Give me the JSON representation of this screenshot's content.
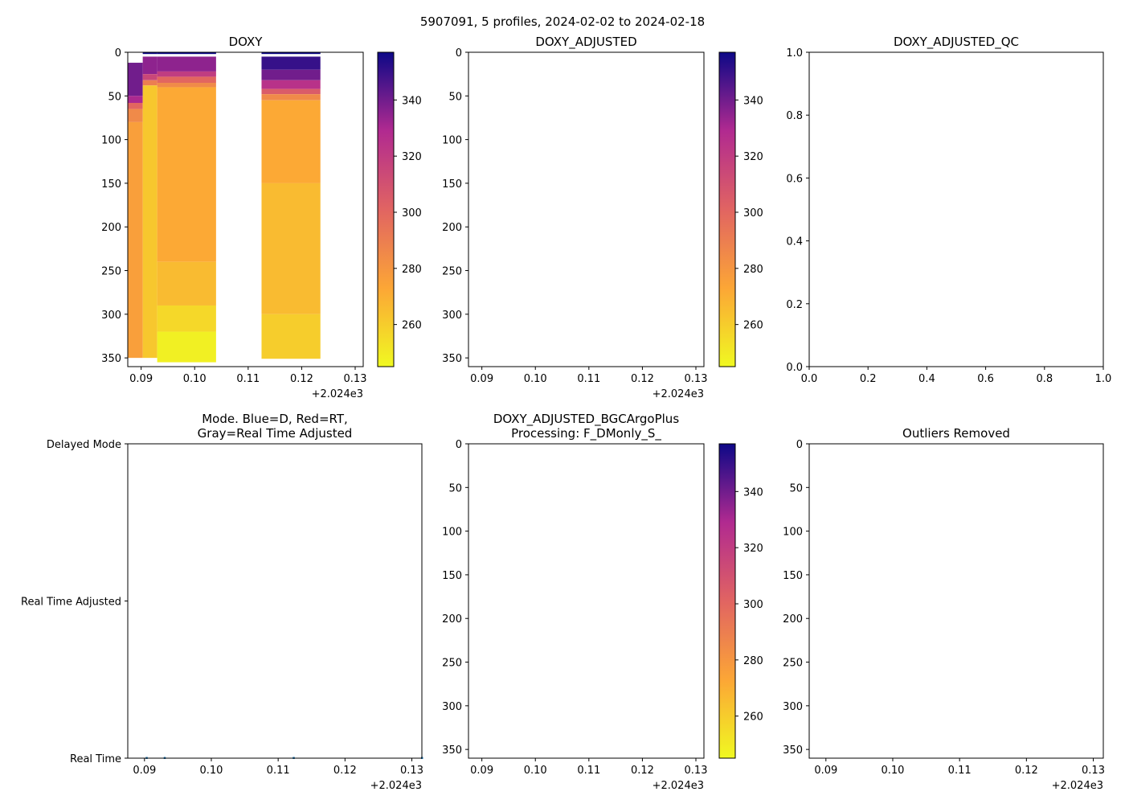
{
  "figure": {
    "suptitle": "5907091, 5 profiles, 2024-02-02 to 2024-02-18"
  },
  "colors": {
    "cmap_low": "#f0f921",
    "cmap_mid_low": "#fca636",
    "cmap_mid": "#e16462",
    "cmap_mid_high": "#b12a90",
    "cmap_high": "#0d0887",
    "mode_dots": "#1f77b4",
    "axes_line": "#000000"
  },
  "chart_data": [
    {
      "type": "heatmap",
      "name": "doxy",
      "title": "DOXY",
      "x_offset_label": "+2.024e3",
      "xlim": [
        0.0875,
        0.1315
      ],
      "ylim": [
        360,
        0
      ],
      "xticks": [
        0.09,
        0.1,
        0.11,
        0.12,
        0.13
      ],
      "xticklabels": [
        "0.09",
        "0.10",
        "0.11",
        "0.12",
        "0.13"
      ],
      "yticks": [
        0,
        50,
        100,
        150,
        200,
        250,
        300,
        350
      ],
      "yticklabels": [
        "0",
        "50",
        "100",
        "150",
        "200",
        "250",
        "300",
        "350"
      ],
      "colorbar": {
        "range": [
          245,
          357
        ],
        "ticks": [
          260,
          280,
          300,
          320,
          340
        ],
        "ticklabels": [
          "260",
          "280",
          "300",
          "320",
          "340"
        ]
      },
      "profiles": [
        {
          "x0": 0.0875,
          "x1": 0.0903,
          "segments": [
            {
              "d0": 0,
              "d1": 12,
              "v": null
            },
            {
              "d0": 12,
              "d1": 50,
              "v": 340
            },
            {
              "d0": 50,
              "d1": 58,
              "v": 330
            },
            {
              "d0": 58,
              "d1": 65,
              "v": 300
            },
            {
              "d0": 65,
              "d1": 80,
              "v": 285
            },
            {
              "d0": 80,
              "d1": 350,
              "v": 276
            }
          ]
        },
        {
          "x0": 0.0903,
          "x1": 0.093,
          "segments": [
            {
              "d0": 0,
              "d1": 2,
              "v": 357
            },
            {
              "d0": 2,
              "d1": 5,
              "v": null
            },
            {
              "d0": 5,
              "d1": 25,
              "v": 335
            },
            {
              "d0": 25,
              "d1": 32,
              "v": 315
            },
            {
              "d0": 32,
              "d1": 38,
              "v": 290
            },
            {
              "d0": 38,
              "d1": 350,
              "v": 262
            }
          ]
        },
        {
          "x0": 0.093,
          "x1": 0.104,
          "segments": [
            {
              "d0": 0,
              "d1": 2,
              "v": 357
            },
            {
              "d0": 2,
              "d1": 5,
              "v": null
            },
            {
              "d0": 5,
              "d1": 22,
              "v": 335
            },
            {
              "d0": 22,
              "d1": 28,
              "v": 320
            },
            {
              "d0": 28,
              "d1": 35,
              "v": 300
            },
            {
              "d0": 35,
              "d1": 40,
              "v": 285
            },
            {
              "d0": 40,
              "d1": 240,
              "v": 272
            },
            {
              "d0": 240,
              "d1": 290,
              "v": 266
            },
            {
              "d0": 290,
              "d1": 320,
              "v": 256
            },
            {
              "d0": 320,
              "d1": 355,
              "v": 248
            }
          ]
        },
        {
          "x0": 0.1125,
          "x1": 0.1235,
          "segments": [
            {
              "d0": 0,
              "d1": 2,
              "v": 357
            },
            {
              "d0": 2,
              "d1": 5,
              "v": null
            },
            {
              "d0": 5,
              "d1": 20,
              "v": 350
            },
            {
              "d0": 20,
              "d1": 32,
              "v": 340
            },
            {
              "d0": 32,
              "d1": 42,
              "v": 325
            },
            {
              "d0": 42,
              "d1": 48,
              "v": 305
            },
            {
              "d0": 48,
              "d1": 55,
              "v": 285
            },
            {
              "d0": 55,
              "d1": 150,
              "v": 272
            },
            {
              "d0": 150,
              "d1": 300,
              "v": 266
            },
            {
              "d0": 300,
              "d1": 351,
              "v": 260
            }
          ]
        }
      ]
    },
    {
      "type": "heatmap",
      "name": "doxy-adjusted",
      "title": "DOXY_ADJUSTED",
      "x_offset_label": "+2.024e3",
      "xlim": [
        0.0875,
        0.1315
      ],
      "ylim": [
        360,
        0
      ],
      "xticks": [
        0.09,
        0.1,
        0.11,
        0.12,
        0.13
      ],
      "xticklabels": [
        "0.09",
        "0.10",
        "0.11",
        "0.12",
        "0.13"
      ],
      "yticks": [
        0,
        50,
        100,
        150,
        200,
        250,
        300,
        350
      ],
      "yticklabels": [
        "0",
        "50",
        "100",
        "150",
        "200",
        "250",
        "300",
        "350"
      ],
      "colorbar": {
        "range": [
          245,
          357
        ],
        "ticks": [
          260,
          280,
          300,
          320,
          340
        ],
        "ticklabels": [
          "260",
          "280",
          "300",
          "320",
          "340"
        ]
      },
      "profiles": []
    },
    {
      "type": "scatter",
      "name": "doxy-adjusted-qc",
      "title": "DOXY_ADJUSTED_QC",
      "xlim": [
        0,
        1
      ],
      "ylim": [
        0,
        1
      ],
      "xticks": [
        0,
        0.2,
        0.4,
        0.6,
        0.8,
        1.0
      ],
      "xticklabels": [
        "0.0",
        "0.2",
        "0.4",
        "0.6",
        "0.8",
        "1.0"
      ],
      "yticks": [
        0,
        0.2,
        0.4,
        0.6,
        0.8,
        1.0
      ],
      "yticklabels": [
        "0.0",
        "0.2",
        "0.4",
        "0.6",
        "0.8",
        "1.0"
      ],
      "points": []
    },
    {
      "type": "scatter",
      "name": "mode",
      "title_lines": [
        "Mode. Blue=D, Red=RT,",
        "Gray=Real Time Adjusted"
      ],
      "x_offset_label": "+2.024e3",
      "xlim": [
        0.0875,
        0.1315
      ],
      "ylim": [
        0,
        2
      ],
      "xticks": [
        0.09,
        0.1,
        0.11,
        0.12,
        0.13
      ],
      "xticklabels": [
        "0.09",
        "0.10",
        "0.11",
        "0.12",
        "0.13"
      ],
      "yticks": [
        2,
        1,
        0
      ],
      "yticklabels": [
        "Delayed Mode",
        "Real Time Adjusted",
        "Real Time"
      ],
      "points": [
        {
          "x": 0.0903,
          "y": 0
        },
        {
          "x": 0.093,
          "y": 0
        },
        {
          "x": 0.1123,
          "y": 0
        },
        {
          "x": 0.1315,
          "y": 0
        }
      ]
    },
    {
      "type": "heatmap",
      "name": "doxy-adjusted-bgcargoplus",
      "title_lines": [
        "DOXY_ADJUSTED_BGCArgoPlus",
        "Processing: F_DMonly_S_"
      ],
      "x_offset_label": "+2.024e3",
      "xlim": [
        0.0875,
        0.1315
      ],
      "ylim": [
        360,
        0
      ],
      "xticks": [
        0.09,
        0.1,
        0.11,
        0.12,
        0.13
      ],
      "xticklabels": [
        "0.09",
        "0.10",
        "0.11",
        "0.12",
        "0.13"
      ],
      "yticks": [
        0,
        50,
        100,
        150,
        200,
        250,
        300,
        350
      ],
      "yticklabels": [
        "0",
        "50",
        "100",
        "150",
        "200",
        "250",
        "300",
        "350"
      ],
      "colorbar": {
        "range": [
          245,
          357
        ],
        "ticks": [
          260,
          280,
          300,
          320,
          340
        ],
        "ticklabels": [
          "260",
          "280",
          "300",
          "320",
          "340"
        ]
      },
      "profiles": []
    },
    {
      "type": "heatmap",
      "name": "outliers-removed",
      "title": "Outliers Removed",
      "x_offset_label": "+2.024e3",
      "xlim": [
        0.0875,
        0.1315
      ],
      "ylim": [
        360,
        0
      ],
      "xticks": [
        0.09,
        0.1,
        0.11,
        0.12,
        0.13
      ],
      "xticklabels": [
        "0.09",
        "0.10",
        "0.11",
        "0.12",
        "0.13"
      ],
      "yticks": [
        0,
        50,
        100,
        150,
        200,
        250,
        300,
        350
      ],
      "yticklabels": [
        "0",
        "50",
        "100",
        "150",
        "200",
        "250",
        "300",
        "350"
      ],
      "profiles": []
    }
  ]
}
